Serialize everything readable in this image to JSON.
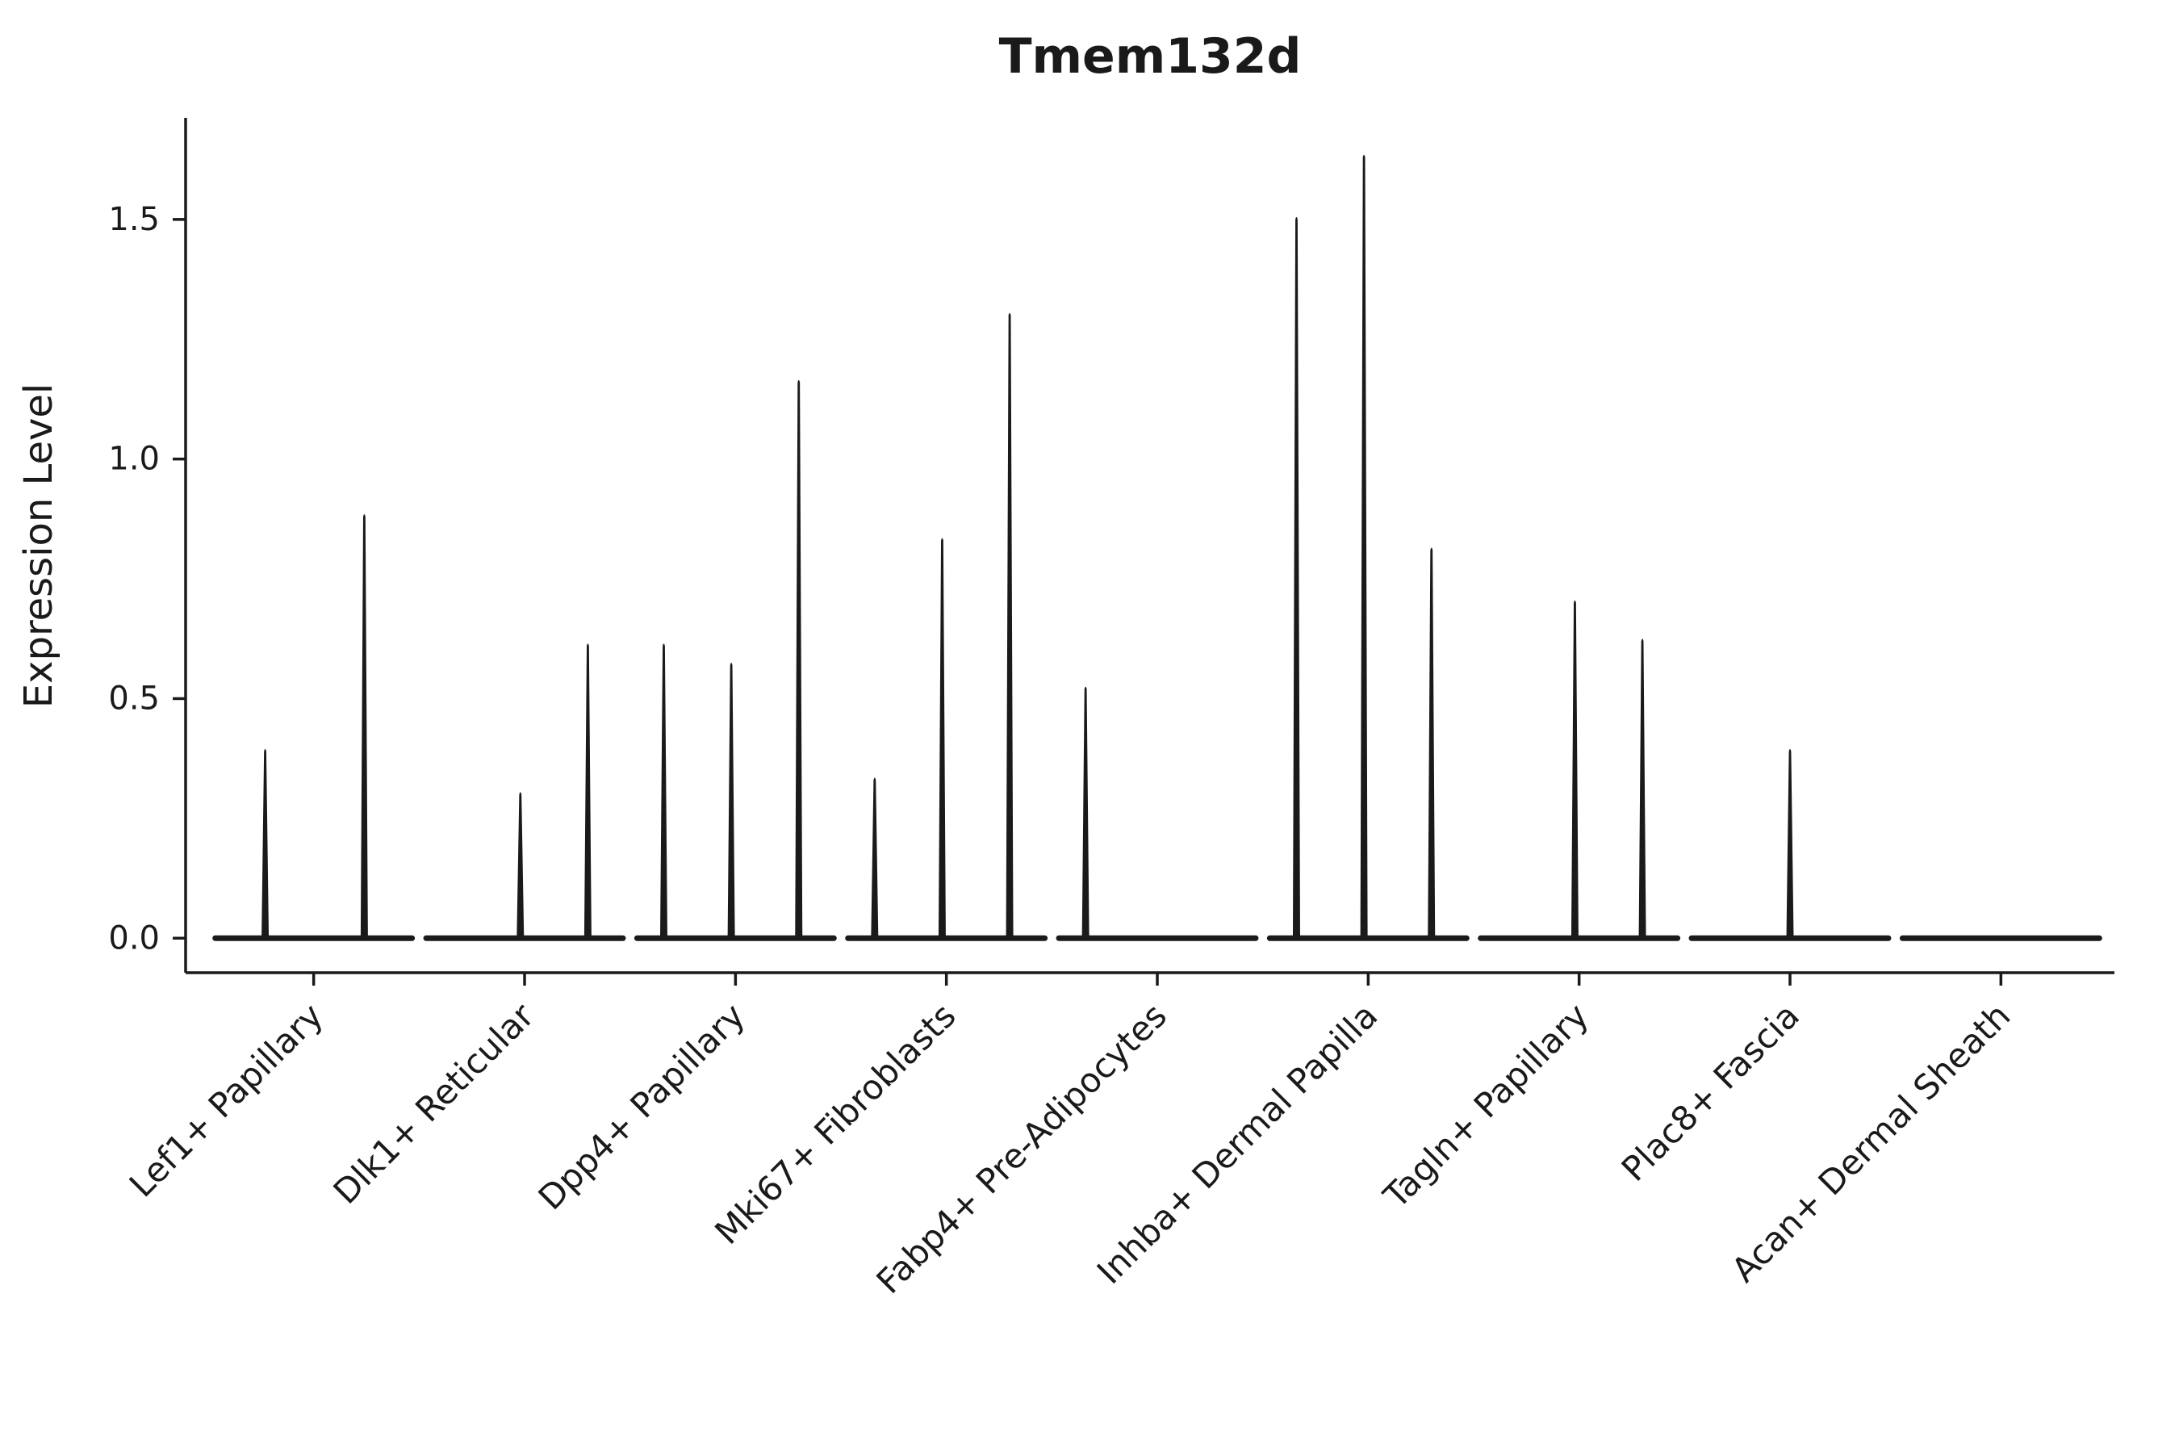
{
  "chart_data": {
    "type": "violin",
    "title": "Tmem132d",
    "ylabel": "Expression Level",
    "xlabel": "",
    "legend": "none",
    "grid": false,
    "ink_color": "#1a1a1a",
    "yticks": [
      "0.0",
      "0.5",
      "1.0",
      "1.5"
    ],
    "ytick_values": [
      0.0,
      0.5,
      1.0,
      1.5
    ],
    "ylim": [
      -0.072,
      1.712
    ],
    "categories": [
      "Lef1+ Papillary",
      "Dlk1+ Reticular",
      "Dpp4+ Papillary",
      "Mki67+ Fibroblasts",
      "Fabp4+ Pre-Adipocytes",
      "Inhba+ Dermal Papilla",
      "Tagln+ Papillary",
      "Plac8+ Fascia",
      "Acan+ Dermal Sheath"
    ],
    "violins": [
      {
        "category": "Lef1+ Papillary",
        "needles": [
          {
            "pos": 0.27,
            "max": 0.4
          },
          {
            "pos": 0.74,
            "max": 0.89
          }
        ]
      },
      {
        "category": "Dlk1+ Reticular",
        "needles": [
          {
            "pos": 0.48,
            "max": 0.31
          },
          {
            "pos": 0.8,
            "max": 0.62
          }
        ]
      },
      {
        "category": "Dpp4+ Papillary",
        "needles": [
          {
            "pos": 0.16,
            "max": 0.62
          },
          {
            "pos": 0.48,
            "max": 0.58
          },
          {
            "pos": 0.8,
            "max": 1.17
          }
        ]
      },
      {
        "category": "Mki67+ Fibroblasts",
        "needles": [
          {
            "pos": 0.16,
            "max": 0.34
          },
          {
            "pos": 0.48,
            "max": 0.84
          },
          {
            "pos": 0.8,
            "max": 1.31
          }
        ]
      },
      {
        "category": "Fabp4+ Pre-Adipocytes",
        "needles": [
          {
            "pos": 0.16,
            "max": 0.53
          }
        ]
      },
      {
        "category": "Inhba+ Dermal Papilla",
        "needles": [
          {
            "pos": 0.16,
            "max": 1.51
          },
          {
            "pos": 0.48,
            "max": 1.64
          },
          {
            "pos": 0.8,
            "max": 0.82
          }
        ]
      },
      {
        "category": "Tagln+ Papillary",
        "needles": [
          {
            "pos": 0.48,
            "max": 0.71
          },
          {
            "pos": 0.8,
            "max": 0.63
          }
        ]
      },
      {
        "category": "Plac8+ Fascia",
        "needles": [
          {
            "pos": 0.5,
            "max": 0.4
          }
        ]
      },
      {
        "category": "Acan+ Dermal Sheath",
        "needles": []
      }
    ],
    "baseline_value": 0.0,
    "note": "Violin plot of gene expression; each cluster shows flat zero-expression bodies with thin spikes up to the maximum expression level."
  }
}
